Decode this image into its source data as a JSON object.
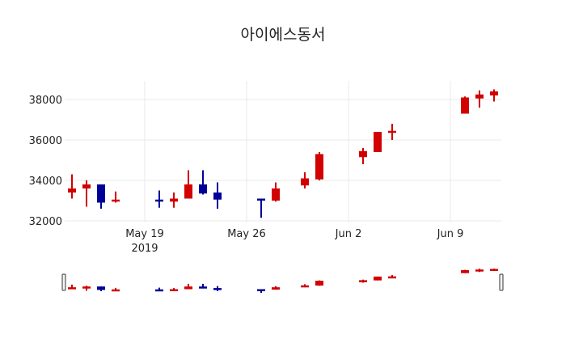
{
  "chart_data": {
    "type": "candlestick",
    "title": "아이에스동서",
    "xlabel": "",
    "ylabel": "",
    "ylim": [
      31950,
      39050
    ],
    "yticks": [
      32000,
      34000,
      36000,
      38000
    ],
    "xticks": [
      {
        "date": "2019-05-19",
        "label": "May 19",
        "sub": "2019"
      },
      {
        "date": "2019-05-26",
        "label": "May 26",
        "sub": ""
      },
      {
        "date": "2019-06-02",
        "label": "Jun 2",
        "sub": ""
      },
      {
        "date": "2019-06-09",
        "label": "Jun 9",
        "sub": ""
      }
    ],
    "increasing_color": "#d20000",
    "decreasing_color": "#000099",
    "grid": true,
    "rangeslider": true,
    "series": [
      {
        "date": "2019-05-14",
        "open": 33400,
        "high": 34300,
        "low": 33100,
        "close": 33600
      },
      {
        "date": "2019-05-15",
        "open": 33600,
        "high": 34000,
        "low": 32700,
        "close": 33800
      },
      {
        "date": "2019-05-16",
        "open": 33800,
        "high": 33800,
        "low": 32600,
        "close": 32900
      },
      {
        "date": "2019-05-17",
        "open": 32950,
        "high": 33450,
        "low": 32900,
        "close": 33050
      },
      {
        "date": "2019-05-20",
        "open": 33050,
        "high": 33500,
        "low": 32650,
        "close": 33000
      },
      {
        "date": "2019-05-21",
        "open": 32950,
        "high": 33400,
        "low": 32650,
        "close": 33100
      },
      {
        "date": "2019-05-22",
        "open": 33100,
        "high": 34500,
        "low": 33100,
        "close": 33800
      },
      {
        "date": "2019-05-23",
        "open": 33800,
        "high": 34500,
        "low": 33300,
        "close": 33350
      },
      {
        "date": "2019-05-24",
        "open": 33400,
        "high": 33900,
        "low": 32600,
        "close": 33050
      },
      {
        "date": "2019-05-27",
        "open": 33100,
        "high": 33100,
        "low": 32150,
        "close": 33050
      },
      {
        "date": "2019-05-28",
        "open": 33000,
        "high": 33900,
        "low": 32950,
        "close": 33600
      },
      {
        "date": "2019-05-30",
        "open": 33750,
        "high": 34400,
        "low": 33600,
        "close": 34100
      },
      {
        "date": "2019-05-31",
        "open": 34050,
        "high": 35400,
        "low": 34000,
        "close": 35300
      },
      {
        "date": "2019-06-03",
        "open": 35150,
        "high": 35600,
        "low": 34800,
        "close": 35450
      },
      {
        "date": "2019-06-04",
        "open": 35400,
        "high": 36400,
        "low": 35400,
        "close": 36400
      },
      {
        "date": "2019-06-05",
        "open": 36350,
        "high": 36800,
        "low": 36000,
        "close": 36450
      },
      {
        "date": "2019-06-10",
        "open": 37300,
        "high": 38150,
        "low": 37300,
        "close": 38100
      },
      {
        "date": "2019-06-11",
        "open": 38050,
        "high": 38450,
        "low": 37600,
        "close": 38250
      },
      {
        "date": "2019-06-12",
        "open": 38200,
        "high": 38500,
        "low": 37900,
        "close": 38400
      }
    ]
  }
}
